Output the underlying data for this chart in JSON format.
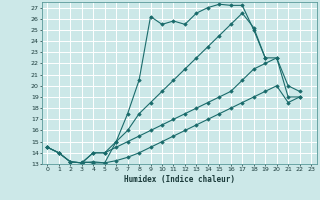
{
  "xlabel": "Humidex (Indice chaleur)",
  "bg_color": "#cce8e8",
  "grid_color": "#ffffff",
  "line_color": "#1a6b6b",
  "xlim": [
    -0.5,
    23.5
  ],
  "ylim": [
    13,
    27.5
  ],
  "xticks": [
    0,
    1,
    2,
    3,
    4,
    5,
    6,
    7,
    8,
    9,
    10,
    11,
    12,
    13,
    14,
    15,
    16,
    17,
    18,
    19,
    20,
    21,
    22,
    23
  ],
  "yticks": [
    13,
    14,
    15,
    16,
    17,
    18,
    19,
    20,
    21,
    22,
    23,
    24,
    25,
    26,
    27
  ],
  "series": [
    [
      [
        0,
        14.5
      ],
      [
        1,
        14.0
      ],
      [
        2,
        13.2
      ],
      [
        3,
        13.1
      ],
      [
        4,
        13.2
      ],
      [
        5,
        13.1
      ],
      [
        6,
        15.0
      ],
      [
        7,
        17.5
      ],
      [
        8,
        20.5
      ],
      [
        9,
        26.2
      ],
      [
        10,
        25.5
      ],
      [
        11,
        25.8
      ],
      [
        12,
        25.5
      ],
      [
        13,
        26.5
      ],
      [
        14,
        27.0
      ],
      [
        15,
        27.3
      ],
      [
        16,
        27.2
      ],
      [
        17,
        27.2
      ],
      [
        18,
        25.0
      ],
      [
        19,
        22.5
      ]
    ],
    [
      [
        0,
        14.5
      ],
      [
        1,
        14.0
      ],
      [
        2,
        13.2
      ],
      [
        3,
        13.1
      ],
      [
        4,
        14.0
      ],
      [
        5,
        14.0
      ],
      [
        6,
        15.0
      ],
      [
        7,
        16.0
      ],
      [
        8,
        17.5
      ],
      [
        9,
        18.5
      ],
      [
        10,
        19.5
      ],
      [
        11,
        20.5
      ],
      [
        12,
        21.5
      ],
      [
        13,
        22.5
      ],
      [
        14,
        23.5
      ],
      [
        15,
        24.5
      ],
      [
        16,
        25.5
      ],
      [
        17,
        26.5
      ],
      [
        18,
        25.2
      ],
      [
        19,
        22.5
      ],
      [
        20,
        22.5
      ],
      [
        21,
        20.0
      ],
      [
        22,
        19.5
      ]
    ],
    [
      [
        0,
        14.5
      ],
      [
        1,
        14.0
      ],
      [
        2,
        13.2
      ],
      [
        3,
        13.1
      ],
      [
        4,
        14.0
      ],
      [
        5,
        14.0
      ],
      [
        6,
        14.5
      ],
      [
        7,
        15.0
      ],
      [
        8,
        15.5
      ],
      [
        9,
        16.0
      ],
      [
        10,
        16.5
      ],
      [
        11,
        17.0
      ],
      [
        12,
        17.5
      ],
      [
        13,
        18.0
      ],
      [
        14,
        18.5
      ],
      [
        15,
        19.0
      ],
      [
        16,
        19.5
      ],
      [
        17,
        20.5
      ],
      [
        18,
        21.5
      ],
      [
        19,
        22.0
      ],
      [
        20,
        22.5
      ],
      [
        21,
        19.0
      ],
      [
        22,
        19.0
      ]
    ],
    [
      [
        3,
        13.2
      ],
      [
        4,
        13.1
      ],
      [
        5,
        13.1
      ],
      [
        6,
        13.3
      ],
      [
        7,
        13.6
      ],
      [
        8,
        14.0
      ],
      [
        9,
        14.5
      ],
      [
        10,
        15.0
      ],
      [
        11,
        15.5
      ],
      [
        12,
        16.0
      ],
      [
        13,
        16.5
      ],
      [
        14,
        17.0
      ],
      [
        15,
        17.5
      ],
      [
        16,
        18.0
      ],
      [
        17,
        18.5
      ],
      [
        18,
        19.0
      ],
      [
        19,
        19.5
      ],
      [
        20,
        20.0
      ],
      [
        21,
        18.5
      ],
      [
        22,
        19.0
      ]
    ]
  ]
}
